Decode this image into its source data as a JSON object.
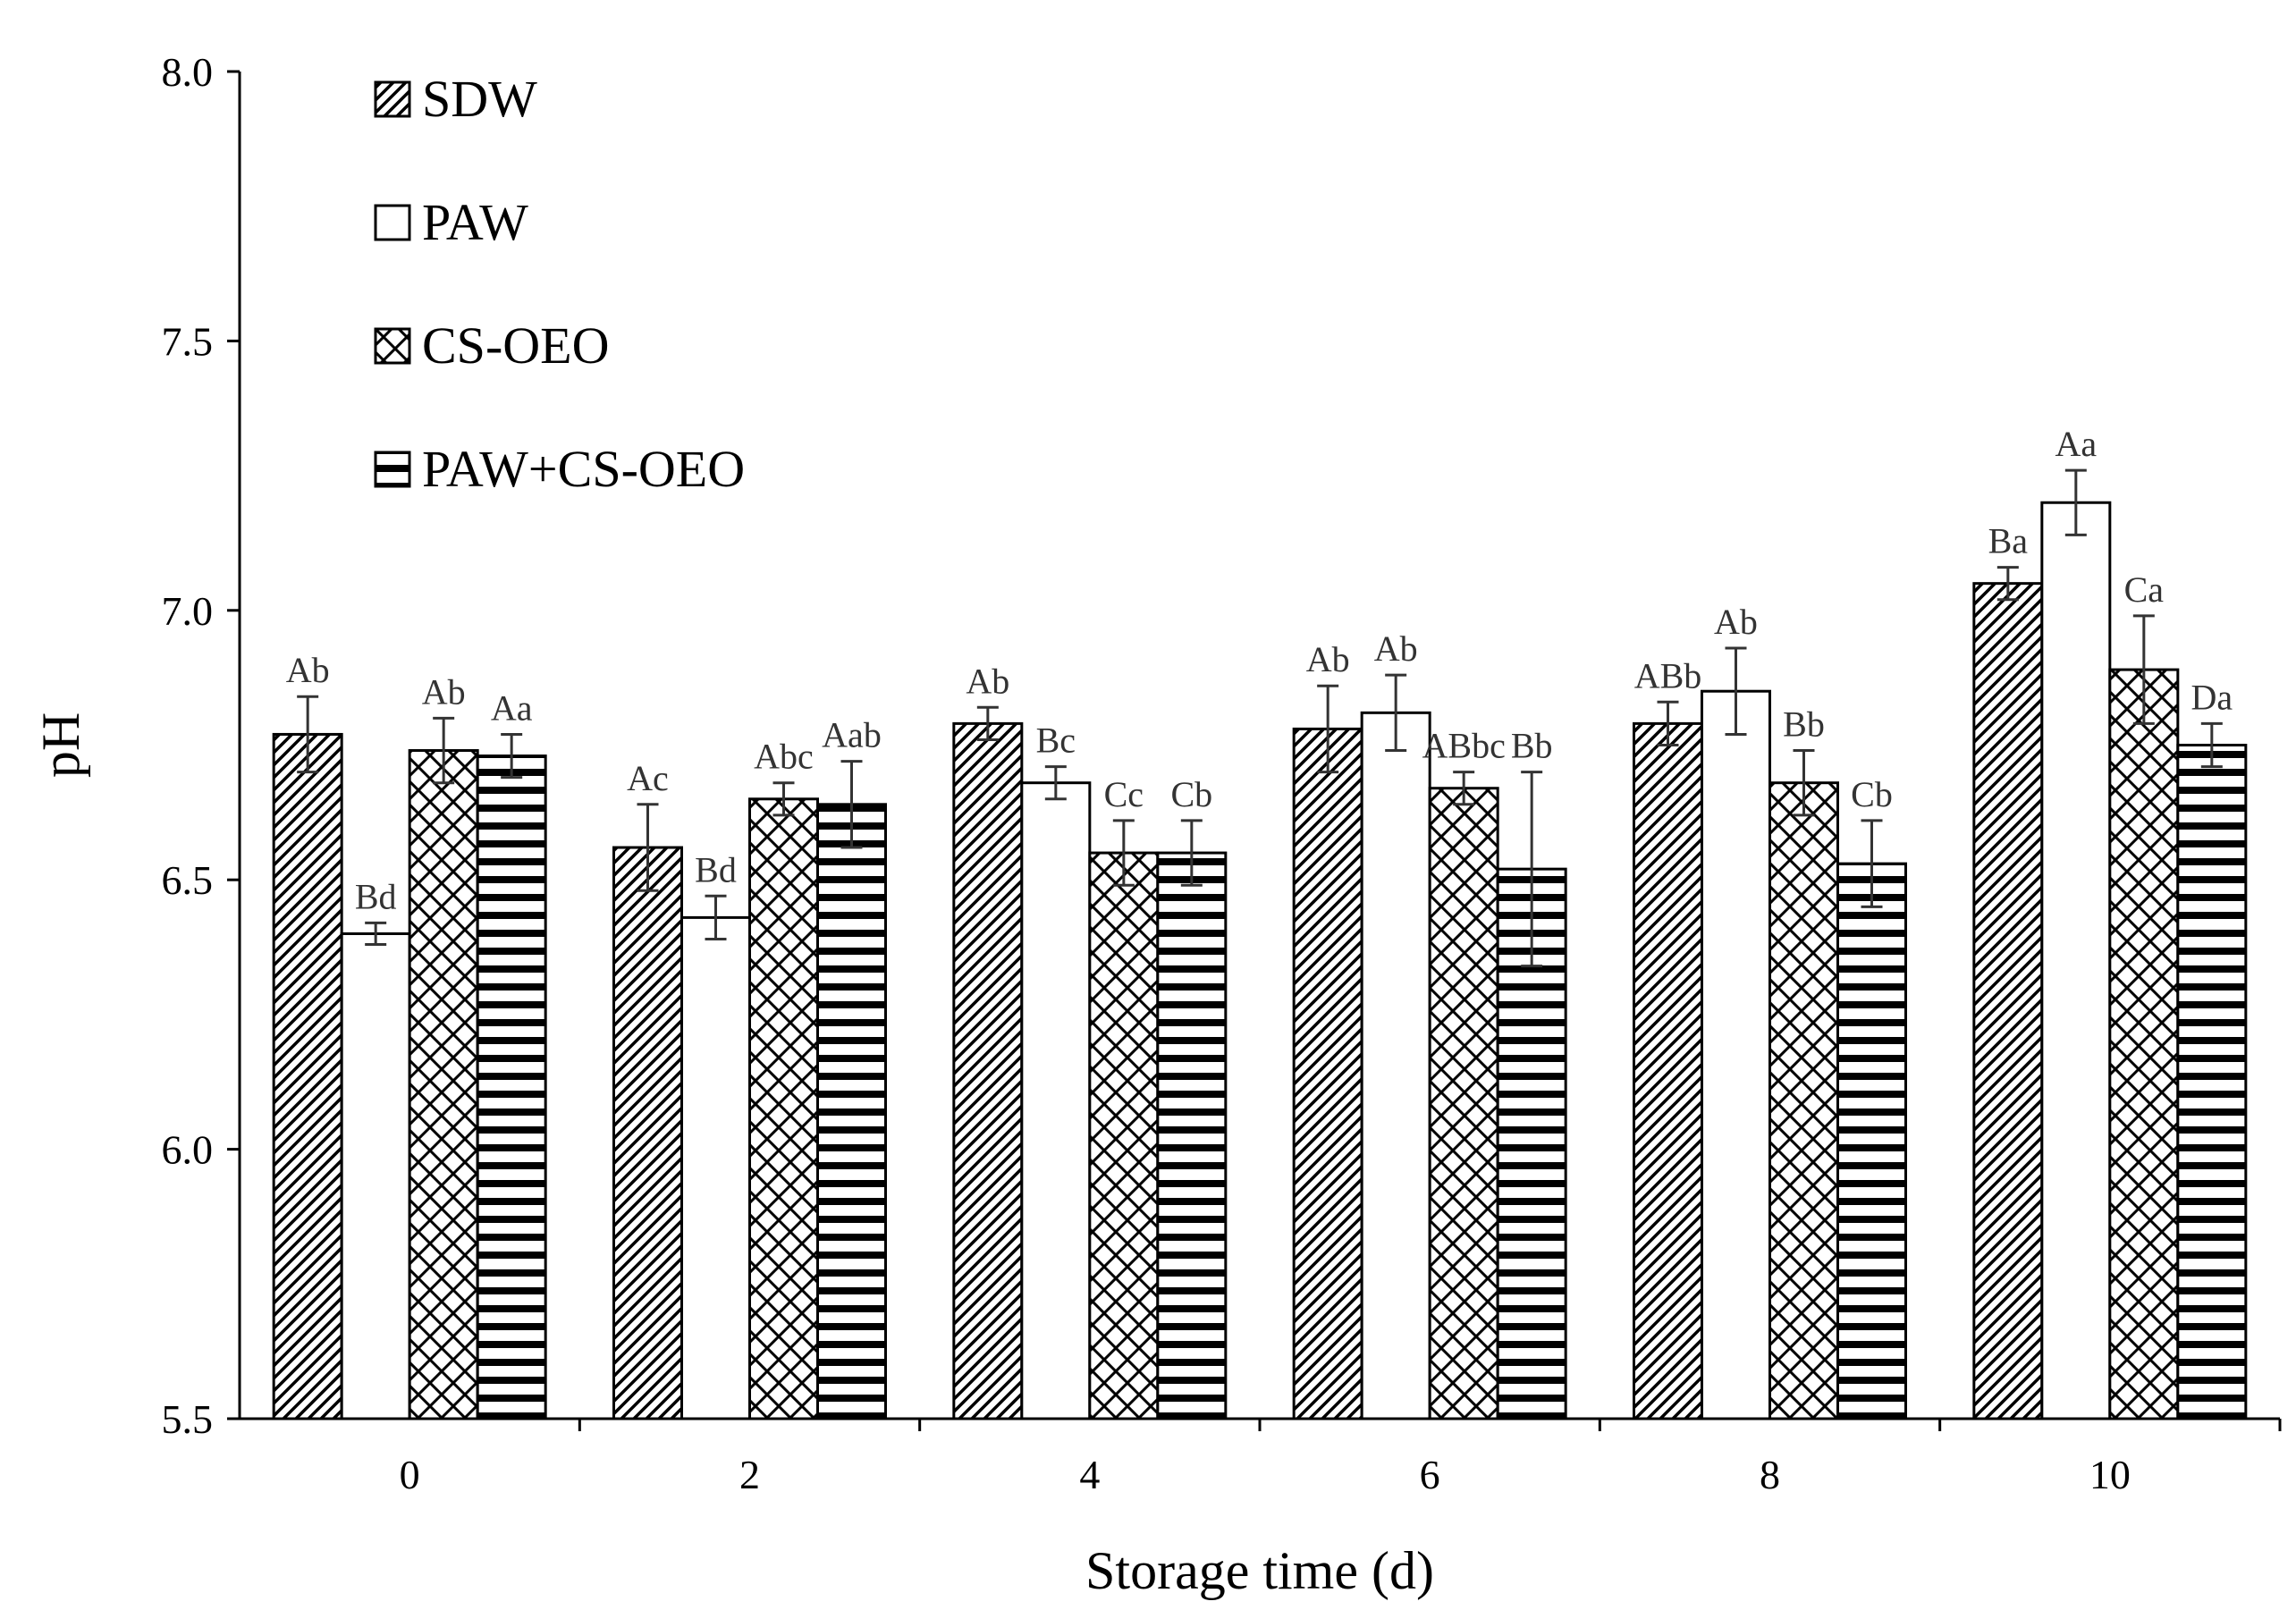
{
  "chart_data": {
    "type": "bar",
    "title": "",
    "xlabel": "Storage time (d)",
    "ylabel": "pH",
    "ylim": [
      5.5,
      8.0
    ],
    "yticks": [
      "5.5",
      "6.0",
      "6.5",
      "7.0",
      "7.5",
      "8.0"
    ],
    "categories": [
      "0",
      "2",
      "4",
      "6",
      "8",
      "10"
    ],
    "legend_position": "top-left",
    "series": [
      {
        "name": "SDW",
        "pattern": "diagonal-hatch",
        "values": [
          6.77,
          6.56,
          6.79,
          6.78,
          6.79,
          7.05
        ],
        "errors": [
          0.07,
          0.08,
          0.03,
          0.08,
          0.04,
          0.03
        ],
        "labels": [
          "Ab",
          "Ac",
          "Ab",
          "Ab",
          "ABb",
          "Ba"
        ]
      },
      {
        "name": "PAW",
        "pattern": "solid-white",
        "values": [
          6.4,
          6.43,
          6.68,
          6.81,
          6.85,
          7.2
        ],
        "errors": [
          0.02,
          0.04,
          0.03,
          0.07,
          0.08,
          0.06
        ],
        "labels": [
          "Bd",
          "Bd",
          "Bc",
          "Ab",
          "Ab",
          "Aa"
        ]
      },
      {
        "name": "CS-OEO",
        "pattern": "crosshatch",
        "values": [
          6.74,
          6.65,
          6.55,
          6.67,
          6.68,
          6.89
        ],
        "errors": [
          0.06,
          0.03,
          0.06,
          0.03,
          0.06,
          0.1
        ],
        "labels": [
          "Ab",
          "Abc",
          "Cc",
          "ABbc",
          "Bb",
          "Ca"
        ]
      },
      {
        "name": "PAW+CS-OEO",
        "pattern": "horizontal-stripes",
        "values": [
          6.73,
          6.64,
          6.55,
          6.52,
          6.53,
          6.75
        ],
        "errors": [
          0.04,
          0.08,
          0.06,
          0.18,
          0.08,
          0.04
        ],
        "labels": [
          "Aa",
          "Aab",
          "Cb",
          "Bb",
          "Cb",
          "Da"
        ]
      }
    ]
  }
}
